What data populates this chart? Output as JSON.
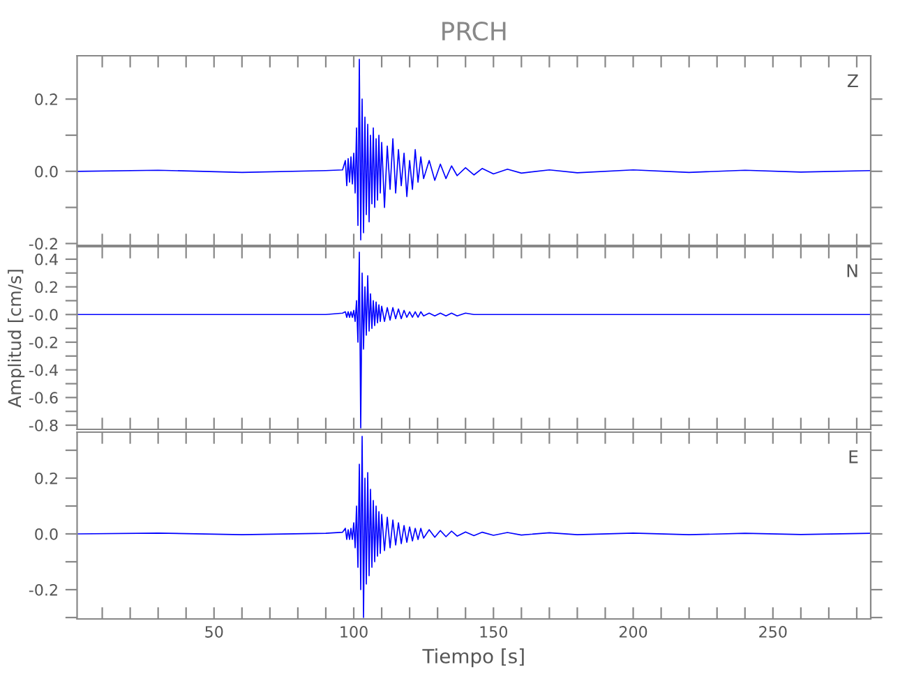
{
  "chart_data": [
    {
      "type": "line",
      "title": "PRCH",
      "annotations": [
        "Z"
      ],
      "tick_labels": "y",
      "grid": false,
      "legend": false,
      "xlim": [
        1,
        285
      ],
      "xticks": [
        {
          "value": 10,
          "label": null
        },
        {
          "value": 20,
          "label": null
        },
        {
          "value": 30,
          "label": null
        },
        {
          "value": 40,
          "label": null
        },
        50,
        {
          "value": 60,
          "label": null
        },
        {
          "value": 70,
          "label": null
        },
        {
          "value": 80,
          "label": null
        },
        {
          "value": 90,
          "label": null
        },
        100,
        {
          "value": 110,
          "label": null
        },
        {
          "value": 120,
          "label": null
        },
        {
          "value": 130,
          "label": null
        },
        {
          "value": 140,
          "label": null
        },
        150,
        {
          "value": 160,
          "label": null
        },
        {
          "value": 170,
          "label": null
        },
        {
          "value": 180,
          "label": null
        },
        {
          "value": 190,
          "label": null
        },
        200,
        {
          "value": 210,
          "label": null
        },
        {
          "value": 220,
          "label": null
        },
        {
          "value": 230,
          "label": null
        },
        {
          "value": 240,
          "label": null
        },
        250,
        {
          "value": 260,
          "label": null
        },
        {
          "value": 270,
          "label": null
        },
        {
          "value": 280,
          "label": null
        }
      ],
      "ylim": [
        -0.205,
        0.32
      ],
      "yticks": [
        {
          "value": -0.2,
          "label": "-0.2"
        },
        {
          "value": -0.1,
          "label": null
        },
        {
          "value": 0,
          "label": "0.0"
        },
        {
          "value": 0.1,
          "label": null
        },
        {
          "value": 0.2,
          "label": "0.2"
        }
      ],
      "series": [
        {
          "color": "#0000ff",
          "x": [
            1,
            30,
            60,
            90,
            96,
            97,
            97.5,
            98,
            98.5,
            99,
            99.5,
            100,
            100.5,
            101,
            101.5,
            102,
            102.5,
            103,
            103.5,
            104,
            104.5,
            105,
            105.5,
            106,
            106.5,
            107,
            107.5,
            108,
            108.5,
            109,
            109.5,
            110,
            111,
            112,
            113,
            114,
            115,
            116,
            117,
            118,
            119,
            120,
            121,
            122,
            123,
            124,
            125,
            127,
            129,
            131,
            133,
            135,
            137,
            140,
            143,
            146,
            150,
            155,
            160,
            170,
            180,
            200,
            220,
            240,
            260,
            285
          ],
          "values": [
            0,
            0.003,
            -0.003,
            0.002,
            0.004,
            0.03,
            -0.04,
            0.035,
            -0.03,
            0.04,
            -0.035,
            0.05,
            -0.06,
            0.12,
            -0.15,
            0.31,
            -0.19,
            0.2,
            -0.17,
            0.15,
            -0.12,
            0.13,
            -0.14,
            0.1,
            -0.09,
            0.12,
            -0.1,
            0.09,
            -0.08,
            0.1,
            -0.06,
            0.08,
            -0.1,
            0.07,
            -0.05,
            0.09,
            -0.06,
            0.06,
            -0.04,
            0.05,
            -0.07,
            0.03,
            -0.05,
            0.06,
            -0.03,
            0.04,
            -0.02,
            0.03,
            -0.025,
            0.02,
            -0.02,
            0.015,
            -0.012,
            0.01,
            -0.01,
            0.008,
            -0.007,
            0.006,
            -0.005,
            0.004,
            -0.004,
            0.004,
            -0.003,
            0.003,
            -0.002,
            0.002
          ]
        }
      ]
    },
    {
      "type": "line",
      "ylabel": "Amplitud [cm/s]",
      "annotations": [
        "N"
      ],
      "tick_labels": "y",
      "grid": false,
      "legend": false,
      "xlim": [
        1,
        285
      ],
      "xticks": [
        {
          "value": 10,
          "label": null
        },
        {
          "value": 20,
          "label": null
        },
        {
          "value": 30,
          "label": null
        },
        {
          "value": 40,
          "label": null
        },
        50,
        {
          "value": 60,
          "label": null
        },
        {
          "value": 70,
          "label": null
        },
        {
          "value": 80,
          "label": null
        },
        {
          "value": 90,
          "label": null
        },
        100,
        {
          "value": 110,
          "label": null
        },
        {
          "value": 120,
          "label": null
        },
        {
          "value": 130,
          "label": null
        },
        {
          "value": 140,
          "label": null
        },
        150,
        {
          "value": 160,
          "label": null
        },
        {
          "value": 170,
          "label": null
        },
        {
          "value": 180,
          "label": null
        },
        {
          "value": 190,
          "label": null
        },
        200,
        {
          "value": 210,
          "label": null
        },
        {
          "value": 220,
          "label": null
        },
        {
          "value": 230,
          "label": null
        },
        {
          "value": 240,
          "label": null
        },
        250,
        {
          "value": 260,
          "label": null
        },
        {
          "value": 270,
          "label": null
        },
        {
          "value": 280,
          "label": null
        }
      ],
      "ylim": [
        -0.83,
        0.49
      ],
      "yticks": [
        {
          "value": -0.8,
          "label": "-0.8"
        },
        {
          "value": -0.7,
          "label": null
        },
        {
          "value": -0.6,
          "label": "-0.6"
        },
        {
          "value": -0.5,
          "label": null
        },
        {
          "value": -0.4,
          "label": "-0.4"
        },
        {
          "value": -0.3,
          "label": null
        },
        {
          "value": -0.2,
          "label": "-0.2"
        },
        {
          "value": -0.1,
          "label": null
        },
        {
          "value": 0,
          "label": "-0.0"
        },
        {
          "value": 0.1,
          "label": null
        },
        {
          "value": 0.2,
          "label": "0.2"
        },
        {
          "value": 0.3,
          "label": null
        },
        {
          "value": 0.4,
          "label": "0.4"
        }
      ],
      "series": [
        {
          "color": "#0000ff",
          "x": [
            1,
            30,
            60,
            90,
            96,
            97,
            97.5,
            98,
            98.5,
            99,
            99.5,
            100,
            100.5,
            101,
            101.5,
            102,
            102.5,
            103,
            103.5,
            104,
            104.5,
            105,
            105.5,
            106,
            106.5,
            107,
            107.5,
            108,
            108.5,
            109,
            109.5,
            110,
            111,
            112,
            113,
            114,
            115,
            116,
            117,
            118,
            119,
            120,
            121,
            122,
            123,
            124,
            125,
            127,
            129,
            131,
            133,
            135,
            137,
            140,
            143,
            146,
            150,
            155,
            160,
            170,
            180,
            200,
            220,
            240,
            260,
            285
          ],
          "values": [
            0,
            0,
            0,
            0,
            0.01,
            0.02,
            -0.02,
            0.02,
            -0.02,
            0.02,
            -0.02,
            0.03,
            -0.05,
            0.1,
            -0.2,
            0.45,
            -0.82,
            0.3,
            -0.25,
            0.2,
            -0.15,
            0.28,
            -0.12,
            0.15,
            -0.1,
            0.1,
            -0.08,
            0.09,
            -0.06,
            0.07,
            -0.05,
            0.06,
            -0.05,
            0.05,
            -0.04,
            0.05,
            -0.03,
            0.04,
            -0.03,
            0.03,
            -0.02,
            0.02,
            -0.02,
            0.02,
            -0.02,
            0.02,
            -0.01,
            0.01,
            -0.01,
            0.01,
            -0.01,
            0.01,
            -0.01,
            0.01,
            0,
            0,
            0,
            0,
            0,
            0,
            0,
            0,
            0,
            0,
            0,
            0
          ]
        }
      ]
    },
    {
      "type": "line",
      "xlabel": "Tiempo [s]",
      "annotations": [
        "E"
      ],
      "grid": false,
      "legend": false,
      "xlim": [
        1,
        285
      ],
      "xticks": [
        {
          "value": 10,
          "label": null
        },
        {
          "value": 20,
          "label": null
        },
        {
          "value": 30,
          "label": null
        },
        {
          "value": 40,
          "label": null
        },
        50,
        {
          "value": 60,
          "label": null
        },
        {
          "value": 70,
          "label": null
        },
        {
          "value": 80,
          "label": null
        },
        {
          "value": 90,
          "label": null
        },
        100,
        {
          "value": 110,
          "label": null
        },
        {
          "value": 120,
          "label": null
        },
        {
          "value": 130,
          "label": null
        },
        {
          "value": 140,
          "label": null
        },
        150,
        {
          "value": 160,
          "label": null
        },
        {
          "value": 170,
          "label": null
        },
        {
          "value": 180,
          "label": null
        },
        {
          "value": 190,
          "label": null
        },
        200,
        {
          "value": 210,
          "label": null
        },
        {
          "value": 220,
          "label": null
        },
        {
          "value": 230,
          "label": null
        },
        {
          "value": 240,
          "label": null
        },
        250,
        {
          "value": 260,
          "label": null
        },
        {
          "value": 270,
          "label": null
        },
        {
          "value": 280,
          "label": null
        }
      ],
      "ylim": [
        -0.305,
        0.365
      ],
      "yticks": [
        {
          "value": -0.3,
          "label": null
        },
        {
          "value": -0.2,
          "label": "-0.2"
        },
        {
          "value": -0.1,
          "label": null
        },
        {
          "value": 0,
          "label": "0.0"
        },
        {
          "value": 0.1,
          "label": null
        },
        {
          "value": 0.2,
          "label": "0.2"
        },
        {
          "value": 0.3,
          "label": null
        }
      ],
      "series": [
        {
          "color": "#0000ff",
          "x": [
            1,
            30,
            60,
            90,
            96,
            97,
            97.5,
            98,
            98.5,
            99,
            99.5,
            100,
            100.5,
            101,
            101.5,
            102,
            102.5,
            103,
            103.5,
            104,
            104.5,
            105,
            105.5,
            106,
            106.5,
            107,
            107.5,
            108,
            108.5,
            109,
            109.5,
            110,
            111,
            112,
            113,
            114,
            115,
            116,
            117,
            118,
            119,
            120,
            121,
            122,
            123,
            124,
            125,
            127,
            129,
            131,
            133,
            135,
            137,
            140,
            143,
            146,
            150,
            155,
            160,
            170,
            180,
            200,
            220,
            240,
            260,
            285
          ],
          "values": [
            0,
            0.003,
            -0.003,
            0.002,
            0.006,
            0.02,
            -0.02,
            0.015,
            -0.02,
            0.02,
            -0.02,
            0.04,
            -0.05,
            0.1,
            -0.12,
            0.25,
            -0.2,
            0.35,
            -0.3,
            0.2,
            -0.18,
            0.22,
            -0.15,
            0.16,
            -0.12,
            0.12,
            -0.1,
            0.1,
            -0.08,
            0.08,
            -0.07,
            0.07,
            -0.06,
            0.06,
            -0.05,
            0.05,
            -0.04,
            0.04,
            -0.035,
            0.03,
            -0.03,
            0.025,
            -0.025,
            0.02,
            -0.02,
            0.02,
            -0.015,
            0.015,
            -0.012,
            0.012,
            -0.01,
            0.01,
            -0.008,
            0.007,
            -0.006,
            0.006,
            -0.005,
            0.005,
            -0.004,
            0.004,
            -0.003,
            0.003,
            -0.003,
            0.002,
            -0.002,
            0.002
          ]
        }
      ]
    }
  ]
}
